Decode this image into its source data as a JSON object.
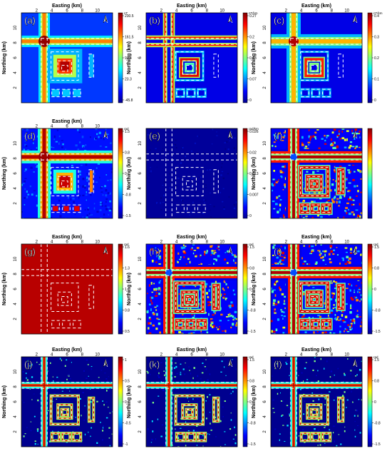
{
  "figure": {
    "xlabel": "Easting (km)",
    "ylabel": "Northing (km)",
    "x_ticks": [
      "2",
      "4",
      "6",
      "8",
      "10"
    ],
    "y_ticks": [
      "2",
      "4",
      "6",
      "8",
      "10"
    ],
    "north_arrow_label": "N"
  },
  "chart_data": [
    {
      "type": "heatmap",
      "panel": "(a)",
      "unit": "nT",
      "colorbar_ticks": [
        "230.5",
        "161.5",
        "92.4",
        "23.3",
        "-45.8"
      ],
      "pattern": "grav",
      "xlabel": "Easting (km)",
      "ylabel": "Northing (km)",
      "show_xlabel": true,
      "show_ylabel": true
    },
    {
      "type": "heatmap",
      "panel": "(b)",
      "unit": "nT/km",
      "colorbar_ticks": [
        "0.27",
        "0.2",
        "0.13",
        "0.07",
        "0"
      ],
      "pattern": "edgeSoft",
      "xlabel": "Easting (km)",
      "ylabel": "Northing (km)",
      "show_xlabel": true,
      "show_ylabel": true
    },
    {
      "type": "heatmap",
      "panel": "(c)",
      "unit": "nT/km",
      "colorbar_ticks": [
        "0.4",
        "0.3",
        "0.2",
        "0.1",
        "0"
      ],
      "pattern": "gradSoft",
      "xlabel": "Easting (km)",
      "ylabel": "Northing (km)",
      "show_xlabel": true,
      "show_ylabel": true
    },
    {
      "type": "heatmap",
      "panel": "(d)",
      "unit": "rad",
      "colorbar_ticks": [
        "1.5",
        "0.8",
        "0",
        "-0.8",
        "-1.5"
      ],
      "pattern": "tilt",
      "xlabel": "Easting (km)",
      "ylabel": "Northing (km)",
      "show_xlabel": true,
      "show_ylabel": true
    },
    {
      "type": "heatmap",
      "panel": "(e)",
      "unit": "rad/km",
      "colorbar_ticks": [
        "0.026",
        "0.02",
        "0.013",
        "0.007",
        "0"
      ],
      "pattern": "dark",
      "xlabel": "Easting (km)",
      "ylabel": "Northing (km)",
      "show_xlabel": false,
      "show_ylabel": true
    },
    {
      "type": "heatmap",
      "panel": "(f)",
      "unit": "",
      "colorbar_ticks": [],
      "pattern": "noisyBands",
      "xlabel": "Easting (km)",
      "ylabel": "Northing (km)",
      "show_xlabel": false,
      "show_ylabel": true
    },
    {
      "type": "heatmap",
      "panel": "(g)",
      "unit": "rad",
      "colorbar_ticks": [
        "1.6",
        "1.3",
        "1",
        "0.8",
        "0.5"
      ],
      "pattern": "red",
      "xlabel": "Easting (km)",
      "ylabel": "Northing (km)",
      "show_xlabel": true,
      "show_ylabel": true
    },
    {
      "type": "heatmap",
      "panel": "(h)",
      "unit": "rad",
      "colorbar_ticks": [
        "1.5",
        "0.8",
        "0",
        "-0.8",
        "-1.5"
      ],
      "pattern": "noisyBands",
      "xlabel": "Easting (km)",
      "ylabel": "Northing (km)",
      "show_xlabel": true,
      "show_ylabel": true
    },
    {
      "type": "heatmap",
      "panel": "(i)",
      "unit": "rad",
      "colorbar_ticks": [
        "1.5",
        "0.8",
        "0",
        "-0.8",
        "-1.5"
      ],
      "pattern": "noisyBands",
      "xlabel": "Easting (km)",
      "ylabel": "Northing (km)",
      "show_xlabel": true,
      "show_ylabel": true
    },
    {
      "type": "heatmap",
      "panel": "(j)",
      "unit": "",
      "colorbar_ticks": [
        "1",
        "0.5",
        "0",
        "-0.5",
        "-1"
      ],
      "pattern": "thin",
      "xlabel": "Easting (km)",
      "ylabel": "Northing (km)",
      "show_xlabel": true,
      "show_ylabel": true
    },
    {
      "type": "heatmap",
      "panel": "(k)",
      "unit": "rad",
      "colorbar_ticks": [
        "1.5",
        "0.8",
        "0",
        "-0.8",
        "-1.5"
      ],
      "pattern": "thin",
      "xlabel": "Easting (km)",
      "ylabel": "Northing (km)",
      "show_xlabel": true,
      "show_ylabel": true
    },
    {
      "type": "heatmap",
      "panel": "(l)",
      "unit": "rad",
      "colorbar_ticks": [
        "1.5",
        "0.8",
        "0",
        "-0.8",
        "-1.5"
      ],
      "pattern": "thin",
      "xlabel": "Easting (km)",
      "ylabel": "Northing (km)",
      "show_xlabel": true,
      "show_ylabel": true
    }
  ]
}
